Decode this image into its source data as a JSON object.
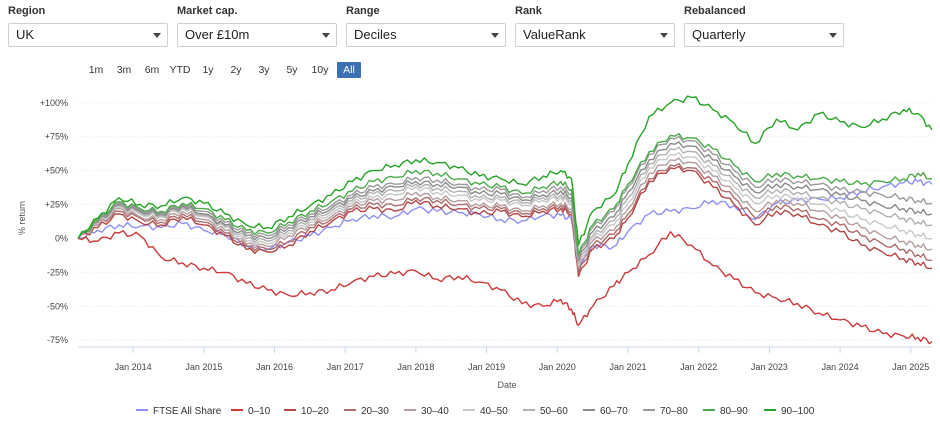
{
  "filters": [
    {
      "label": "Region",
      "value": "UK"
    },
    {
      "label": "Market cap.",
      "value": "Over £10m"
    },
    {
      "label": "Range",
      "value": "Deciles"
    },
    {
      "label": "Rank",
      "value": "ValueRank"
    },
    {
      "label": "Rebalanced",
      "value": "Quarterly"
    }
  ],
  "range_buttons": [
    "1m",
    "3m",
    "6m",
    "YTD",
    "1y",
    "2y",
    "3y",
    "5y",
    "10y",
    "All"
  ],
  "active_range": "All",
  "chart_data": {
    "type": "line",
    "ylabel": "% return",
    "xlabel": "Date",
    "ylim": [
      -80,
      105
    ],
    "xlim": [
      2013.22,
      2025.3
    ],
    "y_ticks": [
      {
        "v": 100,
        "label": "+100%"
      },
      {
        "v": 75,
        "label": "+75%"
      },
      {
        "v": 50,
        "label": "+50%"
      },
      {
        "v": 25,
        "label": "+25%"
      },
      {
        "v": 0,
        "label": "0%"
      },
      {
        "v": -25,
        "label": "-25%"
      },
      {
        "v": -50,
        "label": "-50%"
      },
      {
        "v": -75,
        "label": "-75%"
      }
    ],
    "x_ticks": [
      {
        "v": 2014,
        "label": "Jan 2014"
      },
      {
        "v": 2015,
        "label": "Jan 2015"
      },
      {
        "v": 2016,
        "label": "Jan 2016"
      },
      {
        "v": 2017,
        "label": "Jan 2017"
      },
      {
        "v": 2018,
        "label": "Jan 2018"
      },
      {
        "v": 2019,
        "label": "Jan 2019"
      },
      {
        "v": 2020,
        "label": "Jan 2020"
      },
      {
        "v": 2021,
        "label": "Jan 2021"
      },
      {
        "v": 2022,
        "label": "Jan 2022"
      },
      {
        "v": 2023,
        "label": "Jan 2023"
      },
      {
        "v": 2024,
        "label": "Jan 2024"
      },
      {
        "v": 2025,
        "label": "Jan 2025"
      }
    ],
    "x": [
      2013.22,
      2013.5,
      2013.8,
      2014.1,
      2014.4,
      2014.7,
      2015.0,
      2015.3,
      2015.6,
      2015.9,
      2016.2,
      2016.5,
      2016.8,
      2017.1,
      2017.4,
      2017.7,
      2018.0,
      2018.3,
      2018.6,
      2018.9,
      2019.2,
      2019.5,
      2019.8,
      2020.05,
      2020.2,
      2020.3,
      2020.5,
      2020.8,
      2021.0,
      2021.3,
      2021.6,
      2021.9,
      2022.2,
      2022.5,
      2022.8,
      2023.1,
      2023.4,
      2023.7,
      2024.0,
      2024.3,
      2024.6,
      2024.9,
      2025.1,
      2025.3
    ],
    "series": [
      {
        "name": "FTSE All Share",
        "color": "#8f8ff5",
        "values": [
          0,
          6,
          10,
          9,
          8,
          11,
          6,
          3,
          -5,
          -8,
          -3,
          2,
          8,
          14,
          17,
          16,
          22,
          20,
          19,
          18,
          14,
          13,
          17,
          17,
          14,
          -20,
          -5,
          -6,
          5,
          18,
          20,
          22,
          28,
          24,
          14,
          26,
          28,
          29,
          30,
          35,
          38,
          41,
          42,
          40
        ]
      },
      {
        "name": "0-10",
        "color": "#cc3a3a",
        "values": [
          0,
          -2,
          4,
          2,
          -14,
          -18,
          -22,
          -25,
          -33,
          -38,
          -42,
          -40,
          -38,
          -32,
          -28,
          -26,
          -24,
          -30,
          -28,
          -32,
          -38,
          -48,
          -50,
          -45,
          -52,
          -64,
          -50,
          -35,
          -25,
          -12,
          5,
          -5,
          -20,
          -30,
          -40,
          -44,
          -48,
          -55,
          -60,
          -65,
          -70,
          -72,
          -73,
          -76
        ]
      },
      {
        "name": "10-20",
        "color": "#b54646",
        "values": [
          0,
          8,
          18,
          12,
          10,
          16,
          10,
          2,
          -8,
          -10,
          -5,
          5,
          12,
          20,
          22,
          20,
          28,
          24,
          22,
          18,
          20,
          16,
          20,
          22,
          18,
          -28,
          -8,
          0,
          15,
          42,
          52,
          50,
          38,
          25,
          10,
          20,
          18,
          10,
          5,
          -5,
          -10,
          -15,
          -18,
          -22
        ]
      },
      {
        "name": "20-30",
        "color": "#ad6c6c",
        "values": [
          0,
          10,
          20,
          15,
          12,
          18,
          12,
          4,
          -6,
          -8,
          -2,
          8,
          14,
          22,
          25,
          24,
          30,
          28,
          25,
          22,
          22,
          18,
          22,
          24,
          20,
          -25,
          -5,
          3,
          18,
          44,
          54,
          52,
          42,
          30,
          15,
          24,
          22,
          14,
          10,
          2,
          -4,
          -8,
          -12,
          -16
        ]
      },
      {
        "name": "30-40",
        "color": "#b59e9e",
        "values": [
          0,
          10,
          22,
          16,
          14,
          20,
          14,
          6,
          -4,
          -6,
          2,
          10,
          16,
          24,
          28,
          28,
          34,
          30,
          28,
          24,
          24,
          20,
          24,
          26,
          22,
          -22,
          -2,
          6,
          22,
          48,
          58,
          56,
          46,
          34,
          20,
          28,
          26,
          20,
          15,
          8,
          2,
          -2,
          -5,
          -8
        ]
      },
      {
        "name": "40-50",
        "color": "#c8c8c8",
        "values": [
          0,
          11,
          23,
          18,
          16,
          22,
          16,
          8,
          -2,
          -4,
          4,
          12,
          18,
          26,
          30,
          32,
          38,
          34,
          32,
          28,
          28,
          24,
          28,
          30,
          26,
          -20,
          0,
          10,
          26,
          52,
          62,
          60,
          50,
          38,
          26,
          32,
          30,
          25,
          20,
          14,
          10,
          6,
          3,
          0
        ]
      },
      {
        "name": "50-60",
        "color": "#b0b0b0",
        "values": [
          0,
          12,
          24,
          19,
          17,
          23,
          17,
          9,
          0,
          -2,
          6,
          14,
          20,
          28,
          33,
          35,
          40,
          37,
          35,
          30,
          30,
          26,
          30,
          32,
          28,
          -18,
          2,
          13,
          30,
          55,
          66,
          64,
          54,
          42,
          30,
          36,
          34,
          30,
          26,
          22,
          18,
          15,
          12,
          10
        ]
      },
      {
        "name": "60-70",
        "color": "#8a8a8a",
        "values": [
          0,
          12,
          25,
          20,
          18,
          24,
          18,
          10,
          2,
          0,
          8,
          16,
          22,
          30,
          35,
          38,
          42,
          40,
          38,
          33,
          33,
          28,
          32,
          35,
          30,
          -16,
          5,
          16,
          34,
          58,
          70,
          68,
          58,
          46,
          34,
          40,
          38,
          36,
          32,
          28,
          24,
          22,
          20,
          18
        ]
      },
      {
        "name": "70-80",
        "color": "#9a9a9a",
        "values": [
          0,
          13,
          26,
          21,
          19,
          25,
          20,
          12,
          4,
          2,
          10,
          18,
          24,
          32,
          38,
          40,
          45,
          43,
          40,
          36,
          36,
          30,
          35,
          38,
          33,
          -14,
          8,
          20,
          38,
          62,
          74,
          72,
          62,
          50,
          38,
          44,
          42,
          40,
          36,
          34,
          32,
          30,
          28,
          26
        ]
      },
      {
        "name": "80-90",
        "color": "#4caa4c",
        "values": [
          0,
          14,
          27,
          22,
          20,
          26,
          22,
          14,
          6,
          4,
          12,
          20,
          27,
          35,
          42,
          45,
          50,
          48,
          44,
          40,
          38,
          33,
          38,
          42,
          36,
          -12,
          10,
          22,
          40,
          64,
          76,
          74,
          66,
          54,
          42,
          48,
          46,
          44,
          42,
          40,
          42,
          44,
          48,
          44
        ]
      },
      {
        "name": "90-100",
        "color": "#26a326",
        "values": [
          0,
          15,
          30,
          25,
          24,
          30,
          26,
          18,
          10,
          8,
          16,
          24,
          32,
          42,
          50,
          54,
          58,
          56,
          52,
          46,
          44,
          40,
          46,
          50,
          44,
          -5,
          20,
          32,
          55,
          90,
          100,
          104,
          95,
          85,
          70,
          88,
          80,
          92,
          86,
          82,
          88,
          95,
          92,
          80
        ]
      }
    ]
  }
}
